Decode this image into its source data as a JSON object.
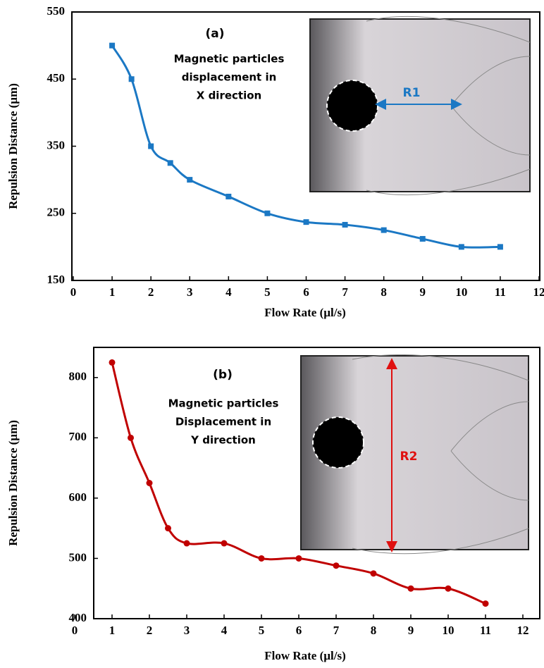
{
  "chart_data": [
    {
      "type": "line",
      "panel_label": "(a)",
      "annotation": [
        "Magnetic particles",
        "displacement in",
        "X direction"
      ],
      "inset_label": "R1",
      "xlabel": "Flow Rate (µl/s)",
      "ylabel": "Repulsion Distance (µm)",
      "x": [
        1,
        1.5,
        2,
        2.5,
        3,
        4,
        5,
        6,
        7,
        8,
        9,
        10,
        11
      ],
      "values": [
        500,
        450,
        350,
        325,
        300,
        275,
        250,
        237,
        233,
        225,
        212,
        200,
        200
      ],
      "color": "#1b78c4",
      "marker": "square",
      "xlim": [
        0,
        12
      ],
      "ylim": [
        150,
        550
      ],
      "xticks": [
        0,
        1,
        2,
        3,
        4,
        5,
        6,
        7,
        8,
        9,
        10,
        11,
        12
      ],
      "yticks": [
        150,
        250,
        350,
        450,
        550
      ]
    },
    {
      "type": "line",
      "panel_label": "(b)",
      "annotation": [
        "Magnetic particles",
        "Displacement in",
        "Y direction"
      ],
      "inset_label": "R2",
      "xlabel": "Flow Rate (µl/s)",
      "ylabel": "Repulsion Distance (µm)",
      "x": [
        1,
        1.5,
        2,
        2.5,
        3,
        4,
        5,
        6,
        7,
        8,
        9,
        10,
        11
      ],
      "values": [
        825,
        700,
        625,
        550,
        525,
        525,
        500,
        500,
        488,
        475,
        450,
        450,
        425
      ],
      "color": "#c00000",
      "marker": "circle",
      "xlim": [
        0,
        12
      ],
      "ylim": [
        400,
        850
      ],
      "xticks": [
        0,
        1,
        2,
        3,
        4,
        5,
        6,
        7,
        8,
        9,
        10,
        11,
        12
      ],
      "yticks": [
        400,
        500,
        600,
        700,
        800
      ]
    }
  ]
}
